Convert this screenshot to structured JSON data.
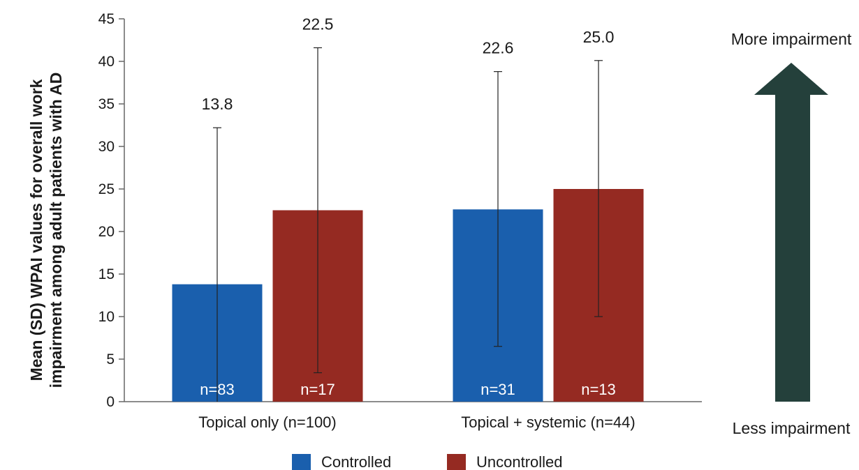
{
  "chart_data": {
    "type": "bar",
    "ylabel": "Mean (SD) WPAI values for overall work impairment among adult patients with AD",
    "ylabel_lines": [
      "Mean (SD) WPAI values for overall work",
      "impairment among adult patients with AD"
    ],
    "ylim": [
      0,
      45
    ],
    "yticks": [
      0,
      5,
      10,
      15,
      20,
      25,
      30,
      35,
      40,
      45
    ],
    "grid": false,
    "legend_position": "bottom",
    "categories": [
      "Topical only (n=100)",
      "Topical + systemic (n=44)"
    ],
    "series": [
      {
        "name": "Controlled",
        "color": "#1a5fad",
        "values": [
          13.8,
          22.6
        ],
        "error_low": [
          0,
          6.5
        ],
        "error_high": [
          32.2,
          38.8
        ],
        "value_labels": [
          "13.8",
          "22.6"
        ],
        "n_labels": [
          "n=83",
          "n=31"
        ]
      },
      {
        "name": "Uncontrolled",
        "color": "#952a22",
        "values": [
          22.5,
          25.0
        ],
        "error_low": [
          3.4,
          10.0
        ],
        "error_high": [
          41.6,
          40.1
        ],
        "value_labels": [
          "22.5",
          "25.0"
        ],
        "n_labels": [
          "n=17",
          "n=13"
        ]
      }
    ],
    "annotations": {
      "top": "More impairment",
      "bottom": "Less impairment",
      "arrow_color": "#24403b"
    }
  }
}
